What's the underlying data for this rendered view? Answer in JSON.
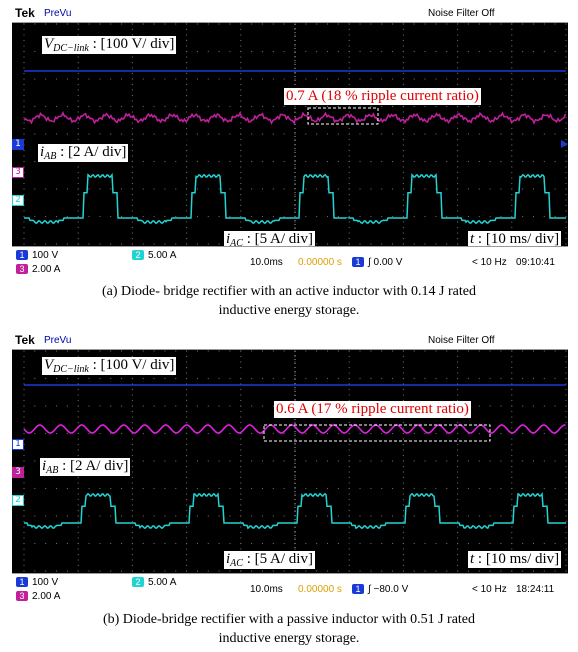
{
  "panel_a": {
    "header": {
      "brand": "Tek",
      "mode": "PreVu",
      "filter": "Noise Filter Off"
    },
    "vdc_label": "V",
    "vdc_sub": "DC−link",
    "vdc_scale": ": [100 V/ div]",
    "ripple_note": "0.7 A (18 % ripple current ratio)",
    "iab_label": "i",
    "iab_sub": "AB",
    "iab_scale": ": [2 A/ div]",
    "iac_label": "i",
    "iac_sub": "AC",
    "iac_scale": ": [5 A/ div]",
    "time_label": "t",
    "time_scale": ": [10 ms/ div]",
    "ch_markers": [
      "1",
      "3",
      "2"
    ],
    "status": {
      "ch1_scale": "100 V",
      "ch2_scale": "5.00 A",
      "ch3_scale": "2.00 A",
      "timebase": "10.0ms",
      "delay": "0.00000 s",
      "trigger": "∫ 0.00 V",
      "freq": "< 10 Hz",
      "clock": "09:10:41"
    },
    "caption_line1": "(a) Diode- bridge rectifier with an  active inductor with 0.14 J rated",
    "caption_line2": "inductive energy storage."
  },
  "panel_b": {
    "header": {
      "brand": "Tek",
      "mode": "PreVu",
      "filter": "Noise Filter Off"
    },
    "vdc_label": "V",
    "vdc_sub": "DC−link",
    "vdc_scale": ": [100 V/ div]",
    "ripple_note": "0.6 A (17 % ripple current ratio)",
    "iab_label": "i",
    "iab_sub": "AB",
    "iab_scale": ": [2 A/ div]",
    "iac_label": "i",
    "iac_sub": "AC",
    "iac_scale": ": [5 A/ div]",
    "time_label": "t",
    "time_scale": ": [10 ms/ div]",
    "ch_markers": [
      "1",
      "3",
      "2"
    ],
    "status": {
      "ch1_scale": "100 V",
      "ch2_scale": "5.00 A",
      "ch3_scale": "2.00 A",
      "timebase": "10.0ms",
      "delay": "0.00000 s",
      "trigger": "∫ −80.0 V",
      "freq": "< 10 Hz",
      "clock": "18:24:11"
    },
    "caption_line1": "(b) Diode-bridge rectifier with a passive inductor with 0.51 J rated",
    "caption_line2": "inductive energy storage."
  },
  "colors": {
    "ch1_dc_link": "#1a3ad8",
    "ch2_ac": "#22d3d3",
    "ch3_ab_a": "#c0209a",
    "ch3_ab_b": "#e020e0",
    "annotation": "#e00000",
    "grid": "#6a6a6a"
  }
}
